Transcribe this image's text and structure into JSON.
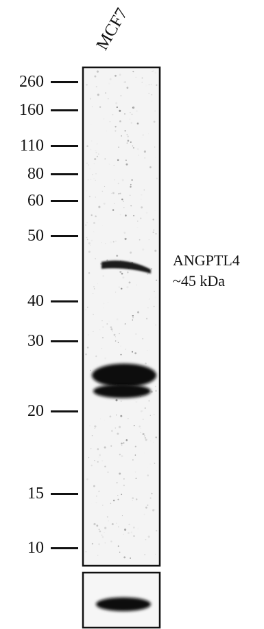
{
  "lane": {
    "label": "MCF7"
  },
  "markers": [
    {
      "label": "260",
      "kda": 260
    },
    {
      "label": "160",
      "kda": 160
    },
    {
      "label": "110",
      "kda": 110
    },
    {
      "label": "80",
      "kda": 80
    },
    {
      "label": "60",
      "kda": 60
    },
    {
      "label": "50",
      "kda": 50
    },
    {
      "label": "40",
      "kda": 40
    },
    {
      "label": "30",
      "kda": 30
    },
    {
      "label": "20",
      "kda": 20
    },
    {
      "label": "15",
      "kda": 15
    },
    {
      "label": "10",
      "kda": 10
    }
  ],
  "annotation": {
    "protein": "ANGPTL4",
    "size": "~45 kDa"
  },
  "colors": {
    "band": "#0c0c0c",
    "membrane": "#f4f4f4",
    "border": "#111111"
  }
}
